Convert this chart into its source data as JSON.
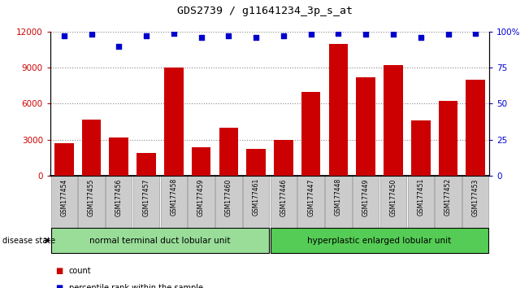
{
  "title": "GDS2739 / g11641234_3p_s_at",
  "samples": [
    "GSM177454",
    "GSM177455",
    "GSM177456",
    "GSM177457",
    "GSM177458",
    "GSM177459",
    "GSM177460",
    "GSM177461",
    "GSM177446",
    "GSM177447",
    "GSM177448",
    "GSM177449",
    "GSM177450",
    "GSM177451",
    "GSM177452",
    "GSM177453"
  ],
  "counts": [
    2700,
    4700,
    3200,
    1900,
    9000,
    2400,
    4000,
    2200,
    3000,
    7000,
    11000,
    8200,
    9200,
    4600,
    6200,
    8000
  ],
  "percentiles": [
    97,
    98,
    90,
    97,
    99,
    96,
    97,
    96,
    97,
    98,
    99,
    98,
    98,
    96,
    98,
    99
  ],
  "bar_color": "#cc0000",
  "dot_color": "#0000cc",
  "ylim_left": [
    0,
    12000
  ],
  "ylim_right": [
    0,
    100
  ],
  "yticks_left": [
    0,
    3000,
    6000,
    9000,
    12000
  ],
  "yticks_right": [
    0,
    25,
    50,
    75,
    100
  ],
  "yticklabels_right": [
    "0",
    "25",
    "50",
    "75",
    "100%"
  ],
  "group1_label": "normal terminal duct lobular unit",
  "group2_label": "hyperplastic enlarged lobular unit",
  "group1_color": "#99dd99",
  "group2_color": "#55cc55",
  "disease_state_label": "disease state",
  "legend_count_label": "count",
  "legend_percentile_label": "percentile rank within the sample",
  "tick_color_left": "#cc0000",
  "tick_color_right": "#0000cc",
  "grid_color": "#888888",
  "label_box_color": "#cccccc",
  "n_group1": 8,
  "n_group2": 8
}
